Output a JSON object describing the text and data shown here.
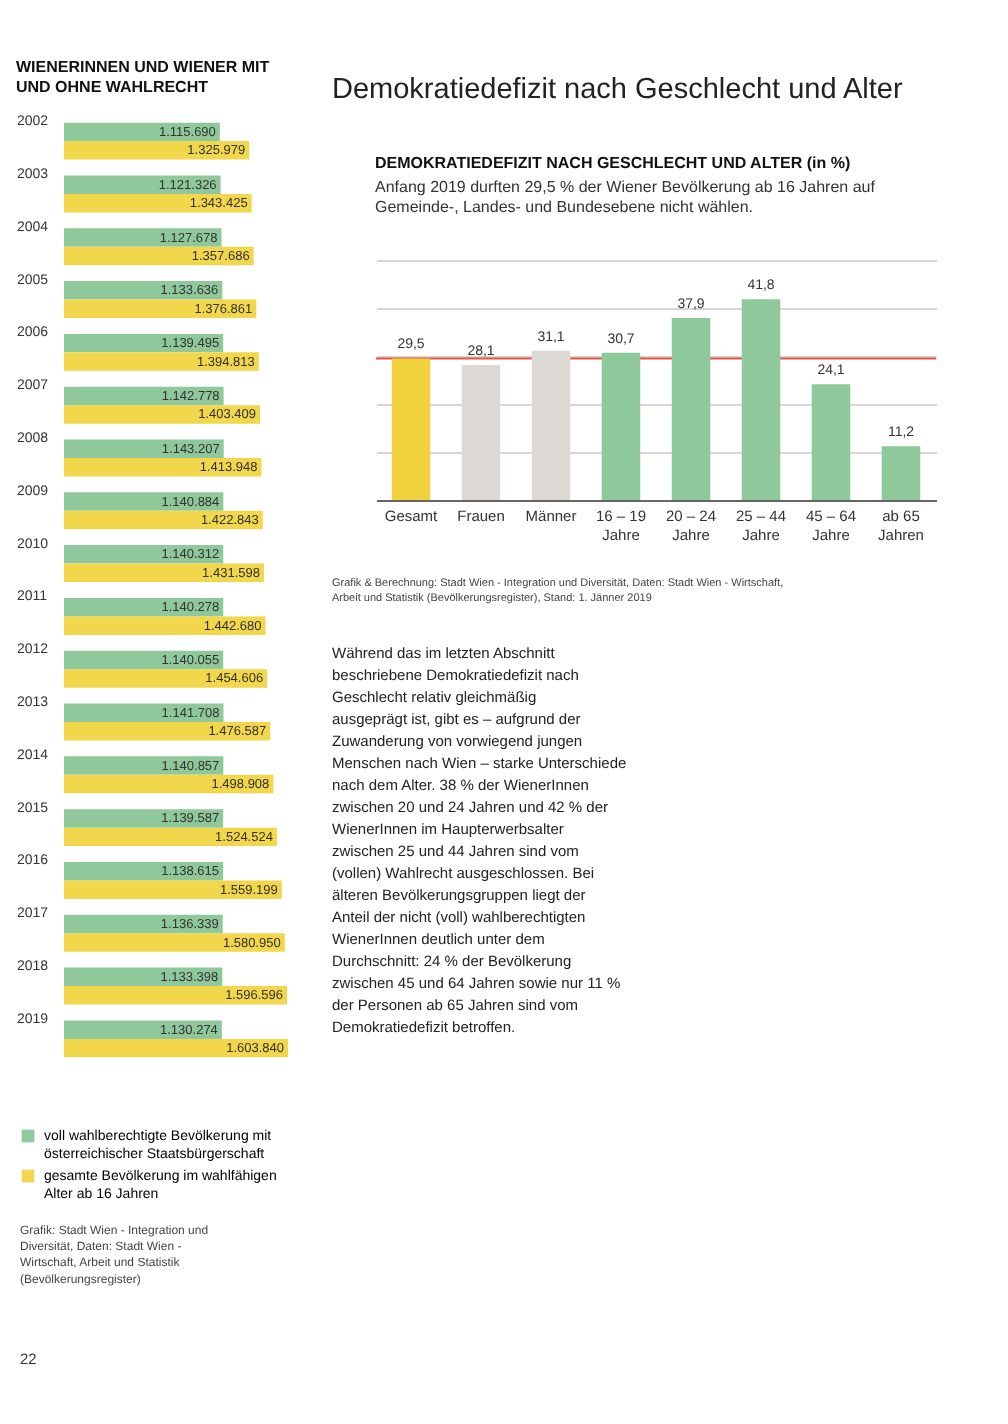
{
  "chart_data": [
    {
      "type": "bar",
      "orientation": "horizontal",
      "title": "WIENERINNEN UND WIENER MIT UND OHNE WAHLRECHT",
      "categories": [
        "2002",
        "2003",
        "2004",
        "2005",
        "2006",
        "2007",
        "2008",
        "2009",
        "2010",
        "2011",
        "2012",
        "2013",
        "2014",
        "2015",
        "2016",
        "2017",
        "2018",
        "2019"
      ],
      "series": [
        {
          "name": "voll wahlberechtigte Bevölkerung mit österreichischer Staatsbürgerschaft",
          "color": "#8fc89a",
          "values": [
            1115690,
            1121326,
            1127678,
            1133636,
            1139495,
            1142778,
            1143207,
            1140884,
            1140312,
            1140278,
            1140055,
            1141708,
            1140857,
            1139587,
            1138615,
            1136339,
            1133398,
            1130274
          ],
          "value_labels": [
            "1.115.690",
            "1.121.326",
            "1.127.678",
            "1.133.636",
            "1.139.495",
            "1.142.778",
            "1.143.207",
            "1.140.884",
            "1.140.312",
            "1.140.278",
            "1.140.055",
            "1.141.708",
            "1.140.857",
            "1.139.587",
            "1.138.615",
            "1.136.339",
            "1.133.398",
            "1.130.274"
          ]
        },
        {
          "name": "gesamte Bevölkerung im wahlfähigen Alter ab 16 Jahren",
          "color": "#f2d64b",
          "values": [
            1325979,
            1343425,
            1357686,
            1376861,
            1394813,
            1403409,
            1413948,
            1422843,
            1431598,
            1442680,
            1454606,
            1476587,
            1498908,
            1524524,
            1559199,
            1580950,
            1596596,
            1603840
          ],
          "value_labels": [
            "1.325.979",
            "1.343.425",
            "1.357.686",
            "1.376.861",
            "1.394.813",
            "1.403.409",
            "1.413.948",
            "1.422.843",
            "1.431.598",
            "1.442.680",
            "1.454.606",
            "1.476.587",
            "1.498.908",
            "1.524.524",
            "1.559.199",
            "1.580.950",
            "1.596.596",
            "1.603.840"
          ]
        }
      ],
      "legend": "bottom",
      "tick_labels": "y",
      "annotations": [
        "Grafik: Stadt Wien - Integration und Diversität, Daten: Stadt Wien - Wirtschaft, Arbeit und Statistik (Bevölkerungsregister)",
        "22"
      ]
    },
    {
      "type": "bar",
      "title": "DEMOKRATIEDEFIZIT NACH GESCHLECHT UND ALTER (in %)",
      "subtitle": "Anfang 2019 durften 29,5 % der Wiener Bevölkerung ab 16 Jahren auf Gemeinde-, Landes- und Bundesebene nicht wählen.",
      "categories": [
        "Gesamt",
        "Frauen",
        "Männer",
        "16 – 19 Jahre",
        "20 – 24 Jahre",
        "25 – 44 Jahre",
        "45 – 64 Jahre",
        "ab 65 Jahren"
      ],
      "values": [
        29.5,
        28.1,
        31.1,
        30.7,
        37.9,
        41.8,
        24.1,
        11.2
      ],
      "colors": [
        "#f0d33c",
        "#dcd9d5",
        "#dcd9d5",
        "#8fc89a",
        "#8fc89a",
        "#8fc89a",
        "#8fc89a",
        "#8fc89a"
      ],
      "ylim": [
        0,
        50
      ],
      "yticks": [
        0,
        10,
        20,
        30,
        40,
        50
      ],
      "grid": "y",
      "tick_labels": "x",
      "value_labels": [
        "29,5",
        "28,1",
        "31,1",
        "30,7",
        "37,9",
        "41,8",
        "24,1",
        "11,2"
      ],
      "ref_lines": [
        {
          "axis": "y",
          "value": 29.5,
          "color": "#e5534b"
        }
      ],
      "annotations": [
        "Demokratiedefizit nach Geschlecht und Alter",
        "Grafik & Berechnung: Stadt Wien - Integration und Diversität, Daten: Stadt Wien - Wirtschaft, Arbeit und Statistik (Bevölkerungsregister), Stand: 1. Jänner 2019",
        "Während das im letzten Abschnitt beschriebene Demokratiedefizit nach Geschlecht relativ gleichmäßig ausgeprägt ist, gibt es – aufgrund der Zuwanderung von vorwiegend jungen Menschen nach Wien – starke Unterschiede nach dem Alter. 38 % der WienerInnen zwischen 20 und 24 Jahren und 42 % der WienerInnen im Haupterwerbsalter zwischen 25 und 44 Jahren sind vom (vollen) Wahlrecht ausgeschlossen. Bei älteren Bevölkerungsgruppen liegt der Anteil der nicht (voll) wahlberechtigten WienerInnen deutlich unter dem Durchschnitt: 24 % der Bevölkerung zwischen 45 und 64 Jahren sowie nur 11 % der Personen ab 65 Jahren sind vom Demokratiedefizit betroffen."
      ]
    }
  ]
}
